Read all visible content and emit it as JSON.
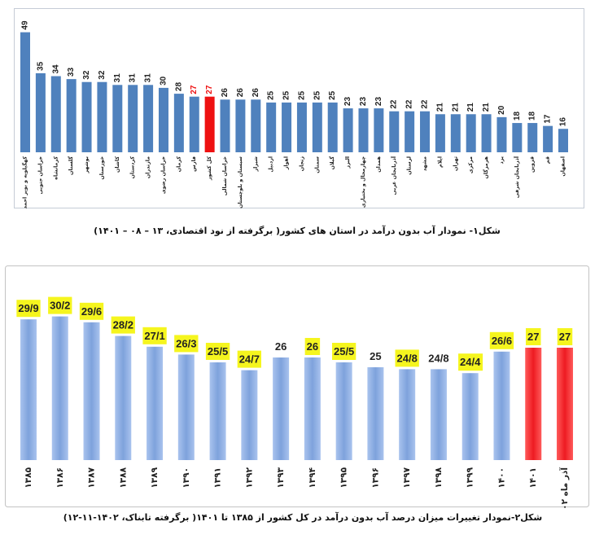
{
  "figure1": {
    "caption": "شکل۱- نمودار آب بدون درآمد در استان های کشور( برگرفته از نود اقتصادی، ۱۳ – ۰۸ – ۱۴۰۱)"
  },
  "figure2": {
    "caption": "شکل۲-نمودار تغییرات میزان درصد آب بدون درآمد در کل کشور از ۱۳۸۵ تا ۱۴۰۱( برگرفته تابناک، ۱۴۰۲-۱۱-۱۲)"
  },
  "colors": {
    "fig1_bar": "#4f81bd",
    "fig1_highlight": "#ee1111",
    "fig2_bar_light": "#a9c3ee",
    "fig2_bar_dark": "#7ea2dc",
    "fig2_highlight_light": "#ff5a5a",
    "fig2_highlight_dark": "#ee1b22",
    "label_bg": "#f5f51e",
    "label_text": "#222222",
    "frame": "#c5ccd6"
  },
  "chart_data": [
    {
      "type": "bar",
      "categories": [
        "کهگیلویه و بویر احمد",
        "خراسان جنوبی",
        "کرمانشاه",
        "گلستان",
        "بوشهر",
        "خوزستان",
        "کاشان",
        "کردستان",
        "مازندران",
        "خراسان رضوی",
        "کرمان",
        "فارس",
        "کل کشور",
        "خراسان شمالی",
        "سیستان و بلوچستان",
        "شیراز",
        "اردبیل",
        "اهواز",
        "زنجان",
        "سمنان",
        "گیلان",
        "البرز",
        "چهارمحال و بختیاری",
        "همدان",
        "آذربایجان غربی",
        "لرستان",
        "مشهد",
        "ایلام",
        "تهران",
        "مرکزی",
        "هرمزگان",
        "یزد",
        "آذربایجان شرقی",
        "قزوین",
        "قم",
        "اصفهان"
      ],
      "values": [
        49,
        35,
        34,
        33,
        32,
        32,
        31,
        31,
        31,
        30,
        28,
        27,
        27,
        26,
        26,
        26,
        25,
        25,
        25,
        25,
        25,
        23,
        23,
        23,
        22,
        22,
        22,
        21,
        21,
        21,
        21,
        20,
        18,
        18,
        17,
        16
      ],
      "highlight": [
        12
      ],
      "highlight_labels": [
        11,
        12
      ],
      "ylim": [
        8,
        50
      ]
    },
    {
      "type": "bar",
      "categories": [
        "۱۳۸۵",
        "۱۳۸۶",
        "۱۳۸۷",
        "۱۳۸۸",
        "۱۳۸۹",
        "۱۳۹۰",
        "۱۳۹۱",
        "۱۳۹۲",
        "۱۳۹۳",
        "۱۳۹۴",
        "۱۳۹۵",
        "۱۳۹۶",
        "۱۳۹۷",
        "۱۳۹۸",
        "۱۳۹۹",
        "۱۴۰۰",
        "۱۴۰۱",
        "آذر ماه ۰۲"
      ],
      "values": [
        29.9,
        30.2,
        29.6,
        28.2,
        27.1,
        26.3,
        25.5,
        24.7,
        26,
        26,
        25.5,
        25,
        24.8,
        24.8,
        24.4,
        26.6,
        27,
        27
      ],
      "value_labels": [
        "29/9",
        "30/2",
        "29/6",
        "28/2",
        "27/1",
        "26/3",
        "25/5",
        "24/7",
        "26",
        "26",
        "25/5",
        "25",
        "24/8",
        "24/8",
        "24/4",
        "26/6",
        "27",
        "27"
      ],
      "label_highlighted": [
        true,
        true,
        true,
        true,
        true,
        true,
        true,
        true,
        false,
        true,
        true,
        false,
        true,
        false,
        true,
        true,
        true,
        true
      ],
      "highlight": [
        16,
        17
      ],
      "ylim": [
        15.5,
        31
      ]
    }
  ]
}
